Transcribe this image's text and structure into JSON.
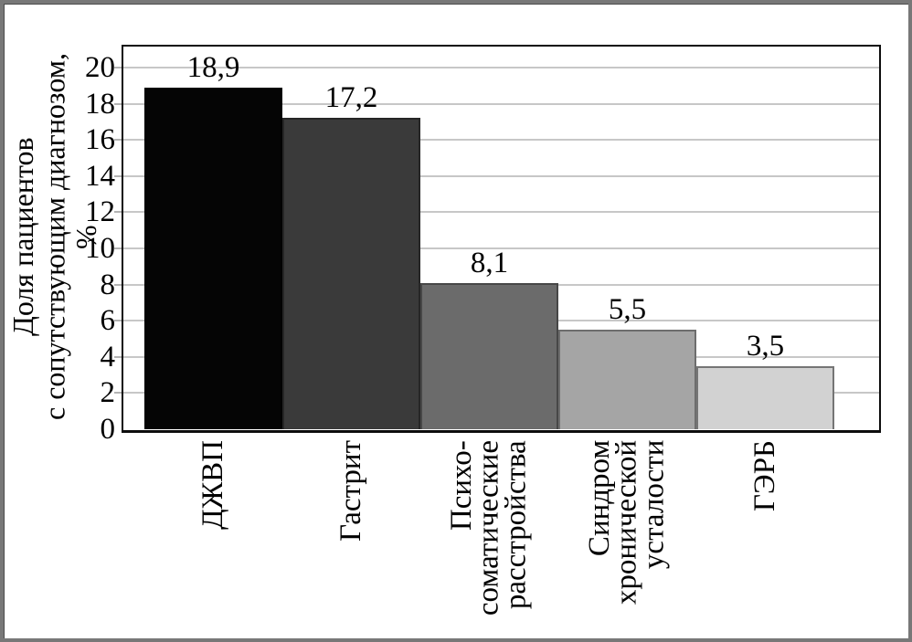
{
  "figure": {
    "outer_frame_color": "#787878",
    "background_color": "#ffffff",
    "gridline_color": "#c7c7c7",
    "axis_frame_color": "#0d0d0d"
  },
  "chart_data": {
    "type": "bar",
    "title": "",
    "xlabel": "",
    "ylabel": "Доля пациентов\nс сопутствующим диагнозом, %",
    "ylim": [
      0,
      20
    ],
    "yticks": [
      0,
      2,
      4,
      6,
      8,
      10,
      12,
      14,
      16,
      18,
      20
    ],
    "ytick_labels": [
      "0",
      "2",
      "4",
      "6",
      "8",
      "10",
      "12",
      "14",
      "16",
      "18",
      "20"
    ],
    "grid": true,
    "legend": "none",
    "categories": [
      "ДЖВП",
      "Гастрит",
      "Психо-\nсоматические\nрасстройства",
      "Синдром\nхронической\nусталости",
      "ГЭРБ"
    ],
    "values": [
      18.9,
      17.2,
      8.1,
      5.5,
      3.5
    ],
    "value_labels": [
      "18,9",
      "17,2",
      "8,1",
      "5,5",
      "3,5"
    ],
    "bar_colors": [
      "#050505",
      "#3a3a3a",
      "#6b6b6b",
      "#a5a5a5",
      "#d2d2d2"
    ],
    "bar_border_colors": [
      "#000000",
      "#262626",
      "#474747",
      "#6d6d6d",
      "#757575"
    ]
  }
}
